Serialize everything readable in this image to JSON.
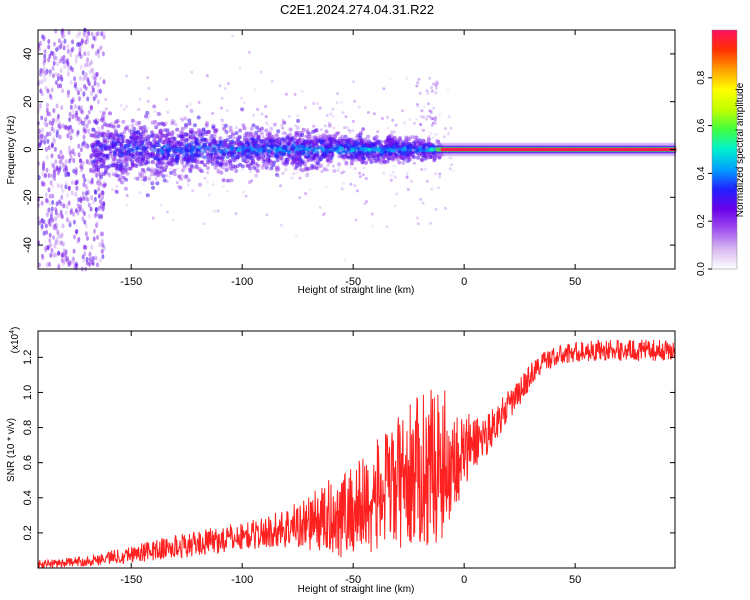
{
  "title": "C2E1.2024.274.04.31.R22",
  "chart_data": [
    {
      "type": "heatmap",
      "xlabel": "Height of straight line (km)",
      "ylabel": "Frequency (Hz)",
      "xlim": [
        -192,
        95
      ],
      "ylim": [
        -50,
        50
      ],
      "xticks": [
        -150,
        -100,
        -50,
        0,
        50
      ],
      "yticks": [
        -40,
        -20,
        0,
        20,
        40
      ],
      "colorbar": {
        "label": "Normalized spectral amplitude",
        "range": [
          0,
          1
        ],
        "ticks": [
          "0.0",
          "0.2",
          "0.4",
          "0.6",
          "0.8"
        ],
        "tick_values": [
          0,
          0.2,
          0.4,
          0.6,
          0.8
        ],
        "colors": [
          "#ffffff",
          "#d7b8f0",
          "#a050f0",
          "#6a00e8",
          "#2020ff",
          "#00a0ff",
          "#00f0d0",
          "#40ff40",
          "#c0ff00",
          "#ffff00",
          "#ffa000",
          "#ff3000",
          "#ff1060"
        ]
      },
      "features": [
        {
          "segment": "wide scatter",
          "x_range": [
            -192,
            -165
          ],
          "freq_spread": 50
        },
        {
          "segment": "broad band",
          "x_range": [
            -165,
            -10
          ],
          "freq_spread_start": 12,
          "freq_spread_end": 3
        },
        {
          "segment": "narrow line at 0 Hz",
          "x_range": [
            -10,
            95
          ],
          "amplitude": 1.0
        }
      ]
    },
    {
      "type": "line",
      "xlabel": "Height of straight line (km)",
      "ylabel": "SNR (10 * v/v)",
      "scale_label": "(x10",
      "scale_exponent": "4",
      "xlim": [
        -192,
        95
      ],
      "ylim": [
        0,
        13500
      ],
      "xticks": [
        -150,
        -100,
        -50,
        0,
        50
      ],
      "yticks": [
        2000,
        4000,
        6000,
        8000,
        10000,
        12000
      ],
      "ytick_labels": [
        "0.2",
        "0.4",
        "0.6",
        "0.8",
        "1.0",
        "1.2"
      ],
      "color": "#ff2020",
      "series": [
        {
          "name": "SNR",
          "x": [
            -192,
            -180,
            -170,
            -160,
            -150,
            -140,
            -130,
            -120,
            -110,
            -100,
            -90,
            -80,
            -70,
            -60,
            -50,
            -45,
            -40,
            -35,
            -30,
            -25,
            -20,
            -15,
            -10,
            -5,
            0,
            5,
            10,
            15,
            20,
            25,
            30,
            35,
            40,
            50,
            60,
            70,
            80,
            95
          ],
          "mean": [
            200,
            300,
            400,
            600,
            800,
            1000,
            1200,
            1400,
            1600,
            1800,
            2000,
            2300,
            2600,
            2900,
            3300,
            3600,
            4000,
            4400,
            4800,
            5200,
            5600,
            5800,
            6000,
            6200,
            6500,
            7200,
            7600,
            8400,
            9200,
            10000,
            11000,
            11700,
            12000,
            12300,
            12400,
            12400,
            12400,
            12400
          ],
          "spread": [
            250,
            250,
            300,
            400,
            500,
            600,
            700,
            700,
            800,
            800,
            900,
            1200,
            1600,
            2200,
            2800,
            3000,
            3200,
            3500,
            3800,
            4000,
            4400,
            4500,
            4500,
            3000,
            2400,
            1600,
            1200,
            1000,
            900,
            800,
            700,
            600,
            600,
            600,
            600,
            600,
            600,
            600
          ]
        }
      ]
    }
  ]
}
